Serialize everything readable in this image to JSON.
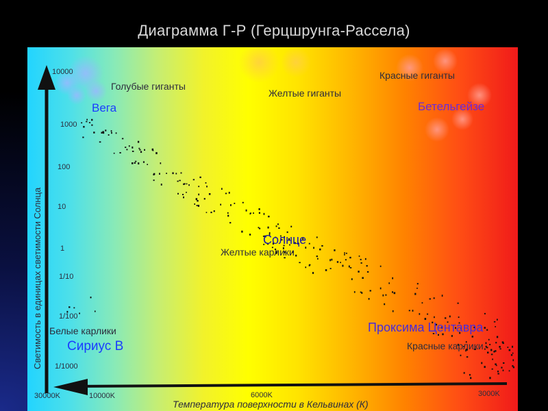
{
  "slide": {
    "title": "Диаграмма Г-Р (Герцшрунга-Рассела)"
  },
  "diagram": {
    "y_axis": {
      "title": "Светимость в единицах светимости Солнца",
      "ticks": [
        "10000",
        "1000",
        "100",
        "10",
        "1",
        "1/10",
        "1/100",
        "1/1000"
      ]
    },
    "x_axis": {
      "title": "Температура поверхности в Кельвинах (К)",
      "ticks": [
        "30000K",
        "10000K",
        "6000K",
        "3000K"
      ]
    },
    "labels": {
      "blue_giants": "Голубые гиганты",
      "yellow_giants": "Желтые гиганты",
      "red_giants": "Красные гиганты",
      "vega": "Вега",
      "betelgeuse": "Бетельгейзе",
      "sun": "Солнце",
      "yellow_dwarfs": "Желтые карлики",
      "white_dwarfs": "Белые карлики",
      "sirius_b": "Сириус В",
      "proxima": "Проксима Центавра",
      "red_dwarfs": "Красные карлики"
    },
    "colors": {
      "hot": "#22d4ff",
      "warm": "#ffff00",
      "cool": "#f01a1a",
      "star_label_blue": "#1a3cff",
      "star_label_purple": "#6a2ad8",
      "axis": "#111111"
    }
  }
}
